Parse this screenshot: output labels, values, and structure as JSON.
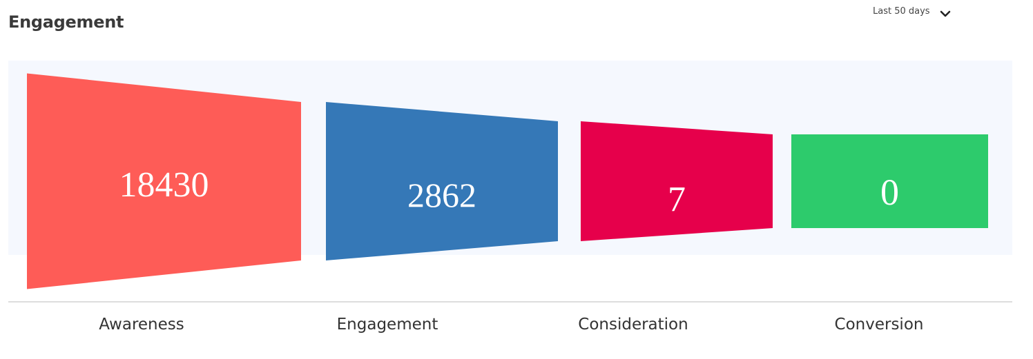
{
  "header": {
    "title": "Engagement",
    "range_label": "Last 50 days",
    "range_icon": "chevron-down-icon"
  },
  "chart_data": {
    "type": "funnel",
    "title": "Engagement",
    "categories": [
      "Awareness",
      "Engagement",
      "Consideration",
      "Conversion"
    ],
    "values": [
      18430,
      2862,
      7,
      0
    ],
    "value_labels": [
      "18430",
      "2862",
      "7",
      "0"
    ],
    "colors": [
      "#fe5c57",
      "#3578b7",
      "#e6004b",
      "#2dcb6c"
    ],
    "grid": false,
    "legend": "none"
  }
}
